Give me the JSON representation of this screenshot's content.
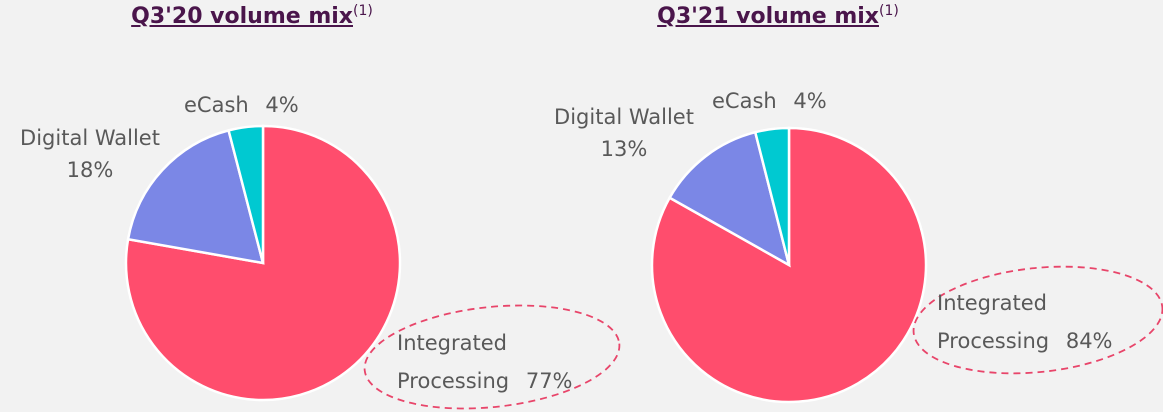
{
  "chart_data": [
    {
      "type": "pie",
      "title": "Q3'20 volume mix",
      "title_note": "(1)",
      "categories": [
        "Integrated Processing",
        "Digital Wallet",
        "eCash"
      ],
      "values": [
        77,
        18,
        4
      ],
      "value_labels": [
        "77%",
        "18%",
        "4%"
      ],
      "colors": [
        "#ff4d6d",
        "#7b87e6",
        "#00c9d1"
      ]
    },
    {
      "type": "pie",
      "title": "Q3'21 volume mix",
      "title_note": "(1)",
      "categories": [
        "Integrated Processing",
        "Digital Wallet",
        "eCash"
      ],
      "values": [
        84,
        13,
        4
      ],
      "value_labels": [
        "84%",
        "13%",
        "4%"
      ],
      "colors": [
        "#ff4d6d",
        "#7b87e6",
        "#00c9d1"
      ]
    }
  ]
}
